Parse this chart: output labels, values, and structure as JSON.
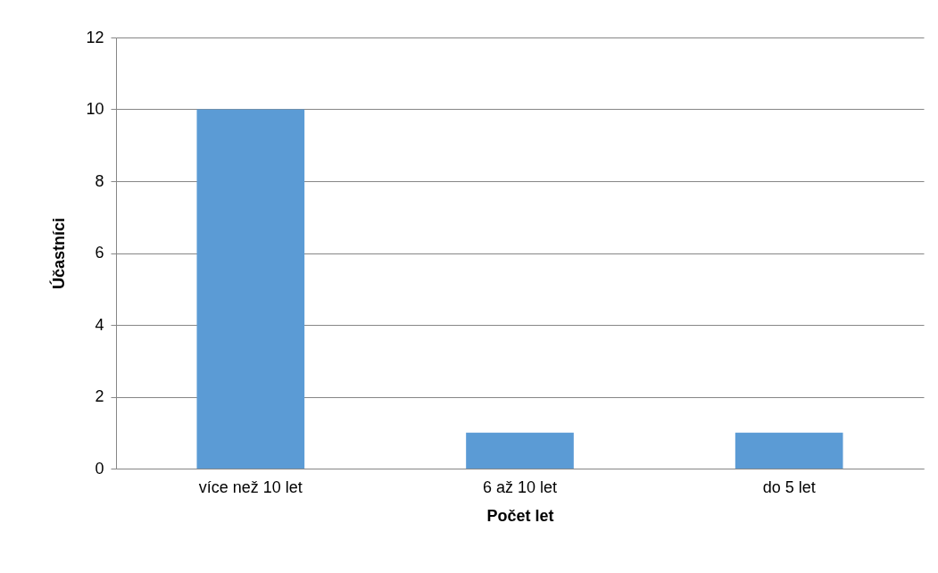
{
  "chart_data": {
    "type": "bar",
    "xlabel": "Počet let",
    "ylabel": "Účastníci",
    "categories": [
      "více než 10 let",
      "6 až 10 let",
      "do 5 let"
    ],
    "values": [
      10,
      1,
      1
    ],
    "color": "#5b9bd5",
    "ylim": [
      0,
      12
    ],
    "yticks": [
      0,
      2,
      4,
      6,
      8,
      10,
      12
    ],
    "grid": "y"
  }
}
